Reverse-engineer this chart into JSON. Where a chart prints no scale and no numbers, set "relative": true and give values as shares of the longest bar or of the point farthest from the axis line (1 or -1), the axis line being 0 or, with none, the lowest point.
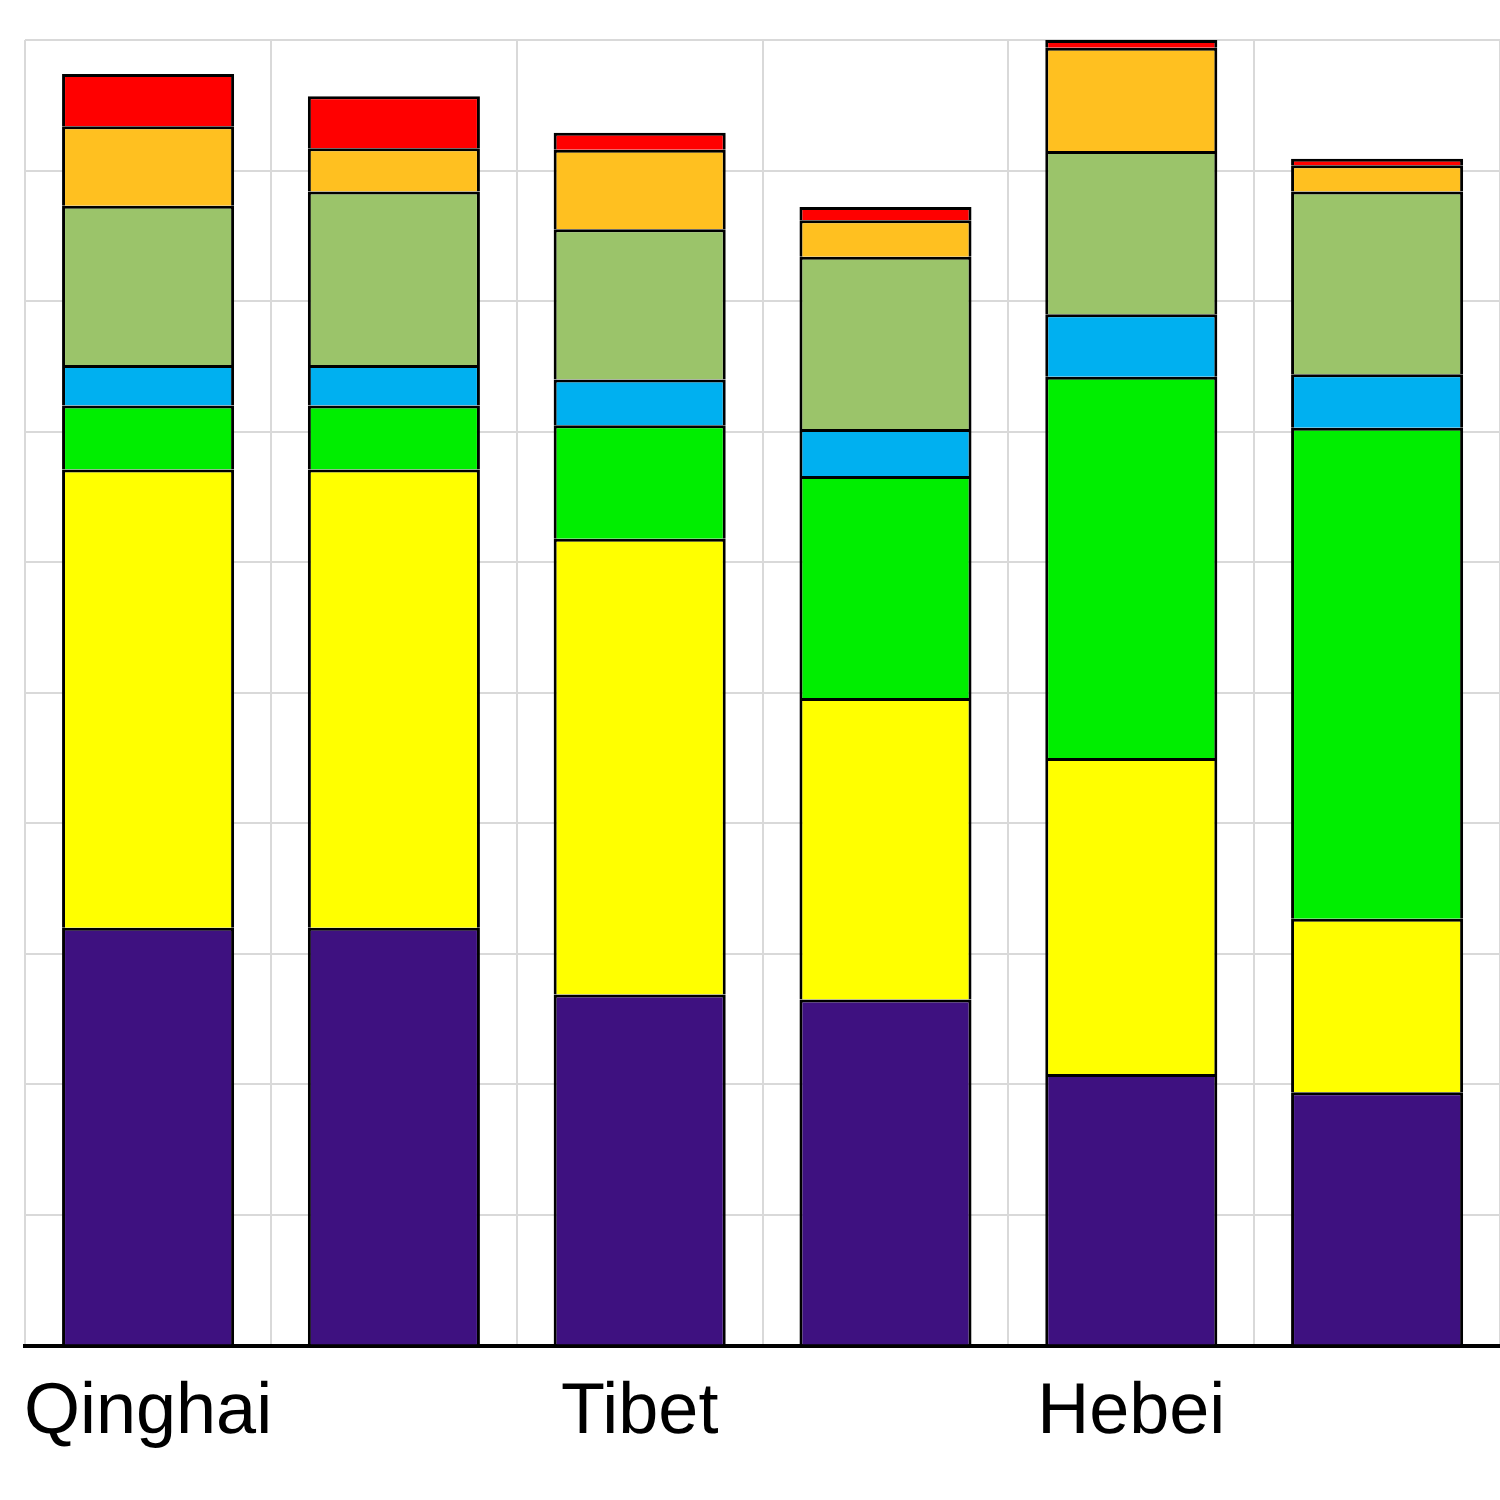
{
  "chart_data": {
    "type": "bar",
    "stacked": true,
    "relative": true,
    "grid": true,
    "categories": [
      "Qinghai",
      null,
      "Tibet",
      null,
      "Hebei",
      null
    ],
    "series": [
      {
        "color": "#3e1180",
        "values": [
          0.32,
          0.32,
          0.269,
          0.265,
          0.208,
          0.194
        ]
      },
      {
        "color": "#ffff00",
        "values": [
          0.351,
          0.351,
          0.349,
          0.231,
          0.242,
          0.133
        ]
      },
      {
        "color": "#00ee00",
        "values": [
          0.049,
          0.049,
          0.087,
          0.17,
          0.292,
          0.376
        ]
      },
      {
        "color": "#00b0f0",
        "values": [
          0.031,
          0.031,
          0.035,
          0.036,
          0.048,
          0.041
        ]
      },
      {
        "color": "#9bc46a",
        "values": [
          0.122,
          0.133,
          0.115,
          0.132,
          0.125,
          0.14
        ]
      },
      {
        "color": "#ffc020",
        "values": [
          0.061,
          0.033,
          0.061,
          0.028,
          0.079,
          0.02
        ]
      },
      {
        "color": "#ff0000",
        "values": [
          0.04,
          0.04,
          0.013,
          0.01,
          0.006,
          0.005
        ]
      }
    ]
  }
}
